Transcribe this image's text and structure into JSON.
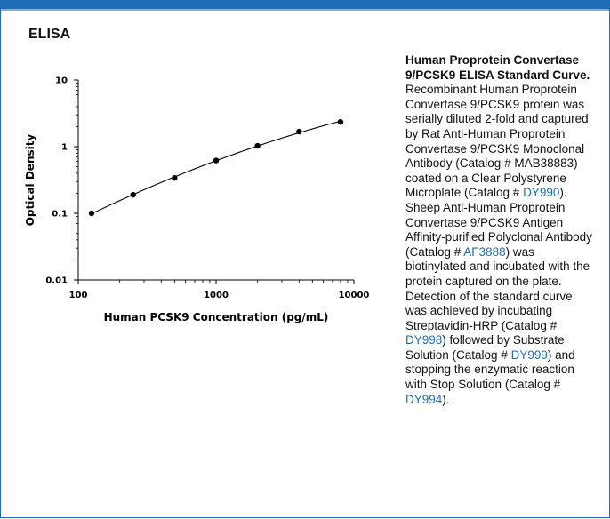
{
  "header": {
    "section_title": "ELISA"
  },
  "colors": {
    "frame": "#1f6db4",
    "link": "#1f6db4",
    "points": "#000000"
  },
  "chart_data": {
    "type": "line",
    "xscale": "log",
    "yscale": "log",
    "xlim": [
      100,
      10000
    ],
    "ylim": [
      0.01,
      10
    ],
    "xlabel": "Human PCSK9 Concentration (pg/mL)",
    "ylabel": "Optical Density",
    "x_ticks": [
      "100",
      "1000",
      "10000"
    ],
    "y_ticks": [
      "0.01",
      "0.1",
      "1",
      "10"
    ],
    "grid": false,
    "series": [
      {
        "x": [
          125,
          250,
          500,
          1000,
          2000,
          4000,
          8000
        ],
        "y": [
          0.1,
          0.19,
          0.34,
          0.62,
          1.03,
          1.68,
          2.35
        ]
      }
    ]
  },
  "caption": {
    "title": "Human Proprotein Convertase 9/PCSK9 ELISA Standard Curve.",
    "text1": " Recombinant Human Proprotein Convertase 9/PCSK9 protein was serially diluted 2-fold and captured by Rat Anti-Human Proprotein Convertase 9/PCSK9 Monoclonal Antibody (Catalog # MAB38883) coated on a Clear Polystyrene Microplate (Catalog # ",
    "link1": "DY990",
    "text2": "). Sheep Anti-Human Proprotein Convertase 9/PCSK9 Antigen Affinity-purified Polyclonal Antibody (Catalog # ",
    "link2": "AF3888",
    "text3": ") was biotinylated and incubated with the protein captured on the plate. Detection of the standard curve was achieved by incubating Streptavidin-HRP (Catalog # ",
    "link3": "DY998",
    "text4": ") followed by Substrate Solution (Catalog # ",
    "link4": "DY999",
    "text5": ") and stopping the enzymatic reaction with Stop Solution (Catalog # ",
    "link5": "DY994",
    "text6": ")."
  }
}
